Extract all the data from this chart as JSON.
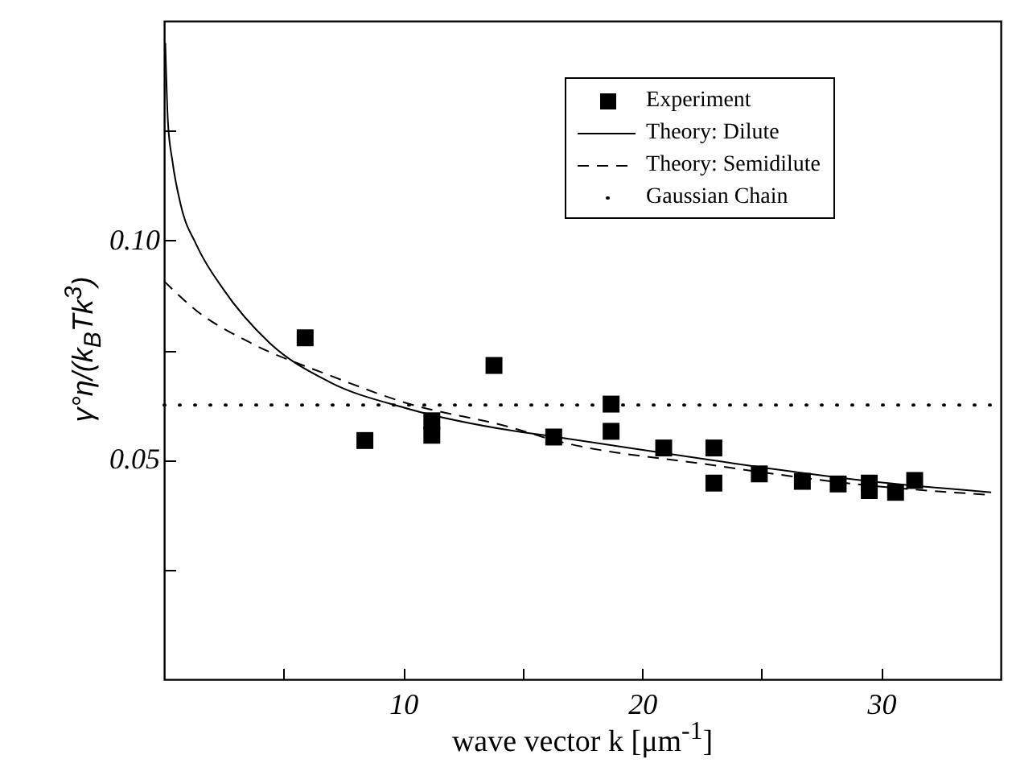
{
  "chart_data": {
    "type": "scatter",
    "xlabel": "wave vector k  [μm$^{-1}$]",
    "ylabel": "γ°η/(k$_{B}$Tk$^{3}$)",
    "xlim": [
      0,
      35
    ],
    "ylim": [
      0,
      0.15
    ],
    "xticks": [
      {
        "value": 5,
        "label": null
      },
      10,
      {
        "value": 15,
        "label": null
      },
      20,
      {
        "value": 25,
        "label": null
      },
      30
    ],
    "yticks": [
      {
        "value": 0.025,
        "label": null
      },
      0.05,
      {
        "value": 0.075,
        "label": null
      },
      {
        "value": 0.1,
        "label": "0.10"
      },
      {
        "value": 0.125,
        "label": null
      }
    ],
    "legend": "top right",
    "series": [
      {
        "name": "Experiment",
        "marker": "square",
        "color": "#000000",
        "x": [
          5.9,
          8.4,
          11.2,
          11.2,
          13.8,
          16.3,
          18.7,
          18.7,
          20.9,
          23.0,
          23.0,
          24.9,
          26.7,
          28.2,
          29.5,
          29.5,
          30.6,
          31.4
        ],
        "values": [
          0.0778,
          0.0544,
          0.0589,
          0.0556,
          0.0715,
          0.0552,
          0.0627,
          0.0565,
          0.0527,
          0.0527,
          0.0447,
          0.0468,
          0.0451,
          0.0445,
          0.0447,
          0.043,
          0.0426,
          0.0453
        ]
      },
      {
        "name": "Theory: Dilute",
        "type": "line",
        "line_style": "solid",
        "color": "#000000",
        "x": [
          0.05,
          0.16,
          0.35,
          0.7,
          1.35,
          2.46,
          4.4,
          6.9,
          10.1,
          14.5,
          16.3,
          22.8,
          29.4,
          34.6
        ],
        "values": [
          0.145,
          0.127,
          0.118,
          0.108,
          0.099,
          0.089,
          0.0767,
          0.0678,
          0.0618,
          0.0567,
          0.0553,
          0.05,
          0.0452,
          0.0426
        ]
      },
      {
        "name": "Theory: Semidilute",
        "type": "line",
        "line_style": "dashed",
        "color": "#000000",
        "x": [
          0,
          1.35,
          3.6,
          6.9,
          10.1,
          14.5,
          16.3,
          22.8,
          29.4,
          34.6
        ],
        "values": [
          0.0907,
          0.084,
          0.0767,
          0.0693,
          0.063,
          0.0574,
          0.0545,
          0.0489,
          0.0442,
          0.042
        ]
      }
    ],
    "ref_lines": [
      {
        "axis": "y",
        "value": 0.0625,
        "label": "Gaussian Chain",
        "line_style": "dotted",
        "color": "#000000"
      }
    ]
  }
}
